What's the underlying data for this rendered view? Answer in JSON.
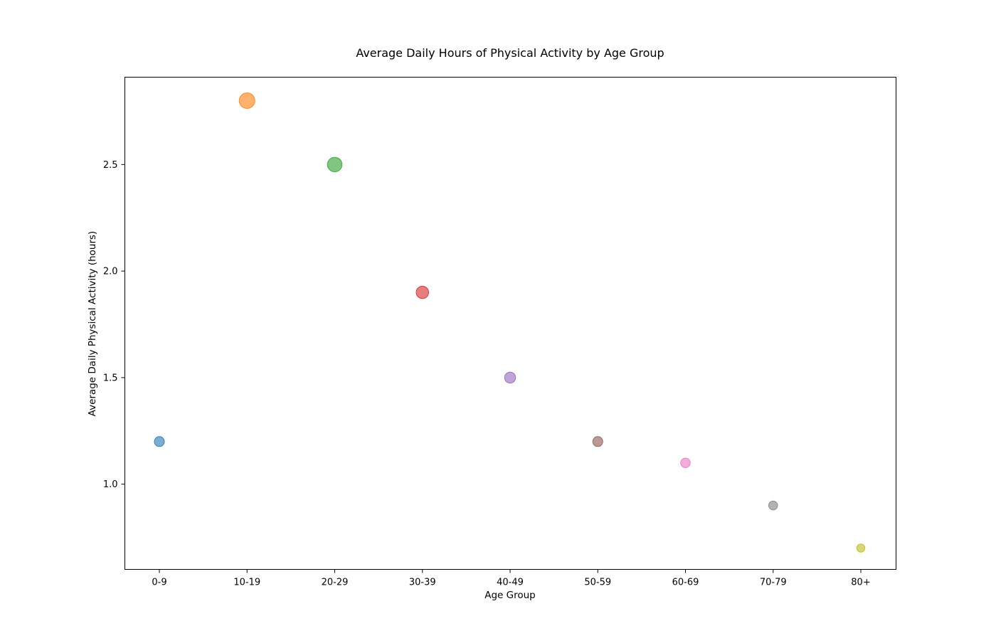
{
  "chart_data": {
    "type": "scatter",
    "title": "Average Daily Hours of Physical Activity by Age Group",
    "xlabel": "Age Group",
    "ylabel": "Average Daily Physical Activity (hours)",
    "categories": [
      "0-9",
      "10-19",
      "20-29",
      "30-39",
      "40-49",
      "50-59",
      "60-69",
      "70-79",
      "80+"
    ],
    "values": [
      1.2,
      2.8,
      2.5,
      1.9,
      1.5,
      1.2,
      1.1,
      0.9,
      0.7
    ],
    "point_colors": [
      "#1f77b4",
      "#ff7f0e",
      "#2ca02c",
      "#d62728",
      "#9467bd",
      "#8c564b",
      "#e377c2",
      "#7f7f7f",
      "#bcbd22"
    ],
    "point_opacity": 0.6,
    "ylim": [
      0.6,
      2.91
    ],
    "yticks": [
      1.0,
      1.5,
      2.0,
      2.5
    ],
    "ytick_labels": [
      "1.0",
      "1.5",
      "2.0",
      "2.5"
    ],
    "grid": false,
    "legend": "none"
  }
}
